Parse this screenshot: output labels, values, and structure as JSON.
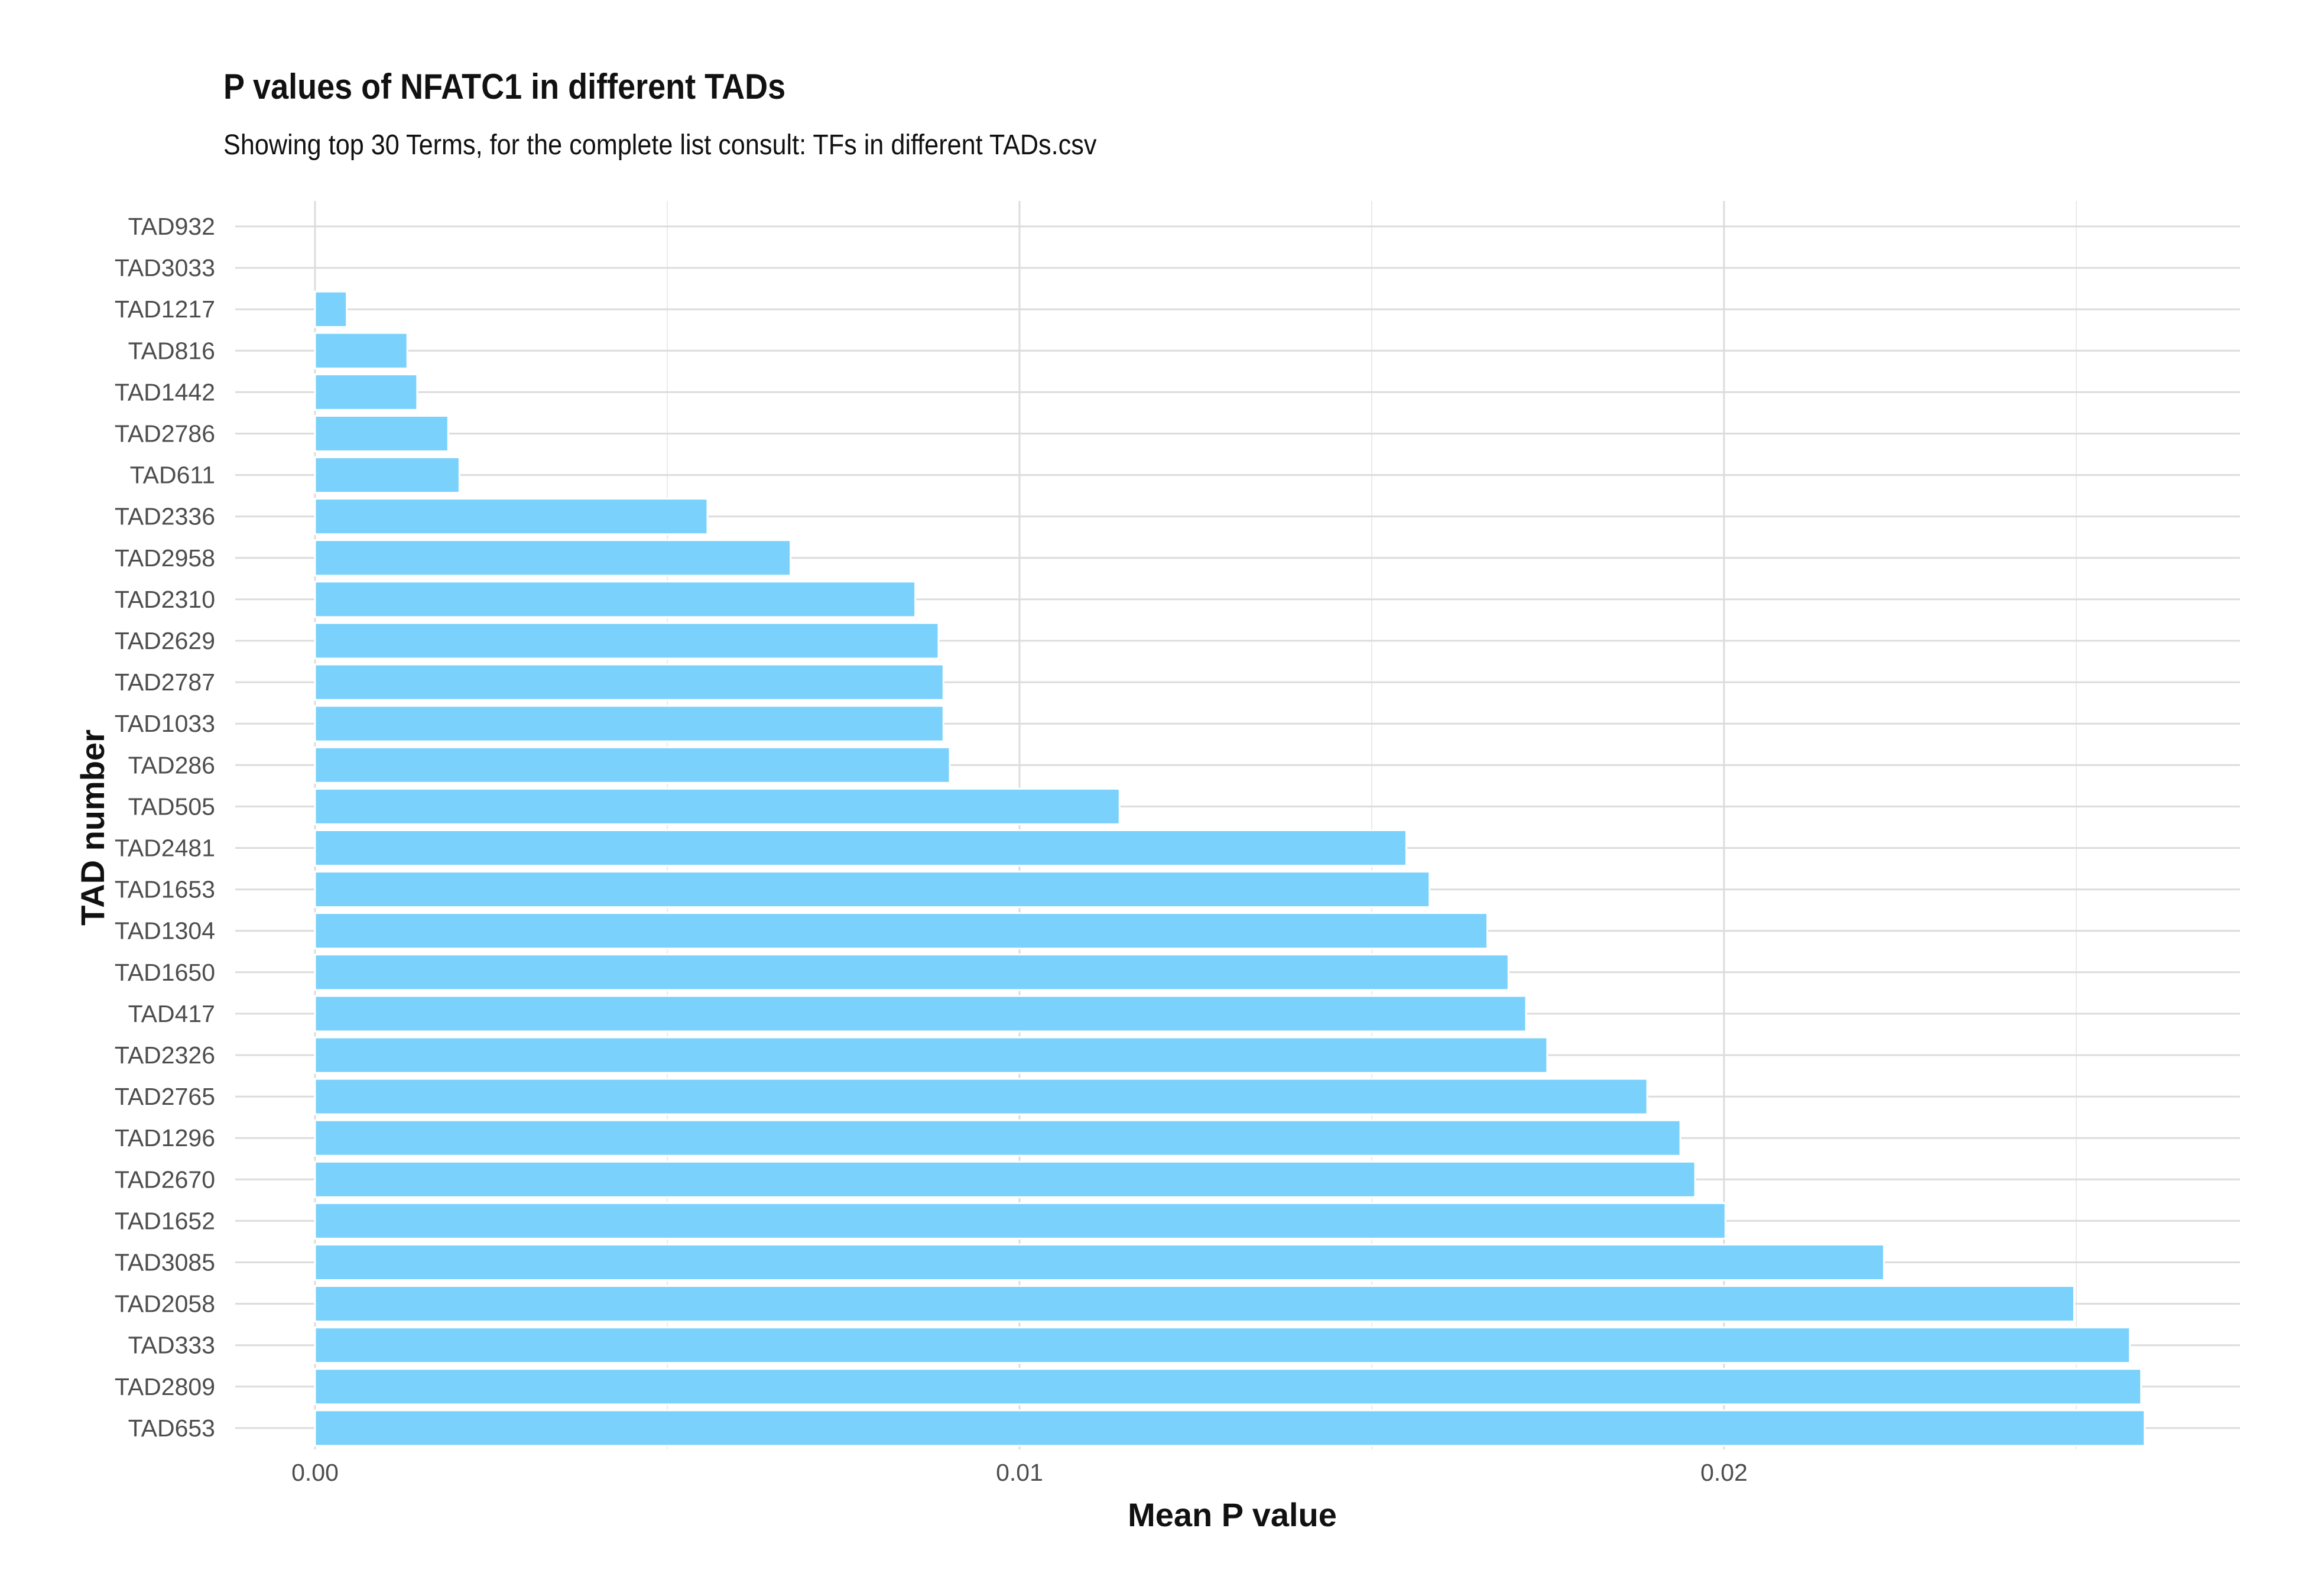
{
  "chart_data": {
    "type": "bar",
    "orientation": "horizontal",
    "title": "P values of NFATC1 in different TADs",
    "subtitle": "Showing top 30 Terms, for the complete list consult: TFs in different TADs.csv",
    "xlabel": "Mean P value",
    "ylabel": "TAD number",
    "xlim": [
      0,
      0.0273
    ],
    "x_ticks": [
      "0.00",
      "0.01",
      "0.02"
    ],
    "x_tick_values": [
      0,
      0.01,
      0.02
    ],
    "grid": true,
    "bar_color": "#7ad1fb",
    "categories": [
      "TAD932",
      "TAD3033",
      "TAD1217",
      "TAD816",
      "TAD1442",
      "TAD2786",
      "TAD611",
      "TAD2336",
      "TAD2958",
      "TAD2310",
      "TAD2629",
      "TAD2787",
      "TAD1033",
      "TAD286",
      "TAD505",
      "TAD2481",
      "TAD1653",
      "TAD1304",
      "TAD1650",
      "TAD417",
      "TAD2326",
      "TAD2765",
      "TAD1296",
      "TAD2670",
      "TAD1652",
      "TAD3085",
      "TAD2058",
      "TAD333",
      "TAD2809",
      "TAD653"
    ],
    "values": [
      0,
      0,
      0.00045,
      0.00131,
      0.00145,
      0.00189,
      0.00205,
      0.00557,
      0.00675,
      0.00852,
      0.00885,
      0.00892,
      0.00892,
      0.00901,
      0.01142,
      0.01549,
      0.01582,
      0.01664,
      0.01694,
      0.01719,
      0.01749,
      0.01891,
      0.01938,
      0.01959,
      0.02002,
      0.02227,
      0.02497,
      0.02576,
      0.02592,
      0.02597
    ]
  }
}
